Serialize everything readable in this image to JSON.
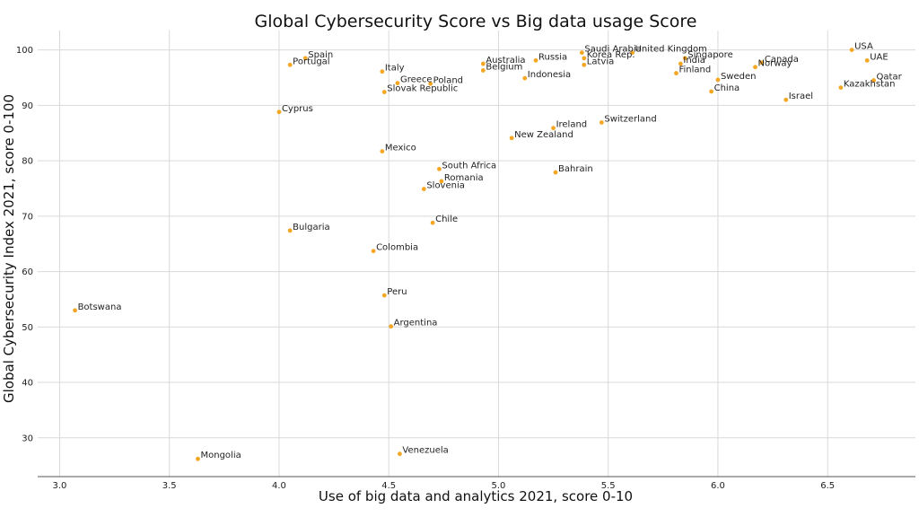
{
  "chart_data": {
    "type": "scatter",
    "title": "Global Cybersecurity Score vs  Big data usage Score",
    "xlabel": "Use of big data and analytics 2021, score 0-10",
    "ylabel": "Global Cybersecurity Index 2021, score 0-100",
    "xlim": [
      2.9,
      6.9
    ],
    "ylim": [
      23,
      103.5
    ],
    "xticks": [
      3.0,
      3.5,
      4.0,
      4.5,
      5.0,
      5.5,
      6.0,
      6.5
    ],
    "yticks": [
      30,
      40,
      50,
      60,
      70,
      80,
      90,
      100
    ],
    "grid": true,
    "marker_color": "#f5a623",
    "points": [
      {
        "label": "USA",
        "x": 6.61,
        "y": 100.0
      },
      {
        "label": "UAE",
        "x": 6.68,
        "y": 98.1
      },
      {
        "label": "Qatar",
        "x": 6.71,
        "y": 94.5
      },
      {
        "label": "Kazakhstan",
        "x": 6.56,
        "y": 93.2
      },
      {
        "label": "Israel",
        "x": 6.31,
        "y": 91.0
      },
      {
        "label": "Canada",
        "x": 6.2,
        "y": 97.7
      },
      {
        "label": "Norway",
        "x": 6.17,
        "y": 96.9
      },
      {
        "label": "Sweden",
        "x": 6.0,
        "y": 94.6
      },
      {
        "label": "China",
        "x": 5.97,
        "y": 92.5
      },
      {
        "label": "Singapore",
        "x": 5.85,
        "y": 98.5
      },
      {
        "label": "India",
        "x": 5.83,
        "y": 97.5
      },
      {
        "label": "Finland",
        "x": 5.81,
        "y": 95.8
      },
      {
        "label": "United Kingdom",
        "x": 5.61,
        "y": 99.5
      },
      {
        "label": "Saudi Arabia",
        "x": 5.38,
        "y": 99.5
      },
      {
        "label": "Korea Rep.",
        "x": 5.39,
        "y": 98.5
      },
      {
        "label": "Latvia",
        "x": 5.39,
        "y": 97.3
      },
      {
        "label": "Switzerland",
        "x": 5.47,
        "y": 86.9
      },
      {
        "label": "Russia",
        "x": 5.17,
        "y": 98.1
      },
      {
        "label": "Indonesia",
        "x": 5.12,
        "y": 94.9
      },
      {
        "label": "Ireland",
        "x": 5.25,
        "y": 85.9
      },
      {
        "label": "Bahrain",
        "x": 5.26,
        "y": 77.9
      },
      {
        "label": "New Zealand",
        "x": 5.06,
        "y": 84.1
      },
      {
        "label": "Australia",
        "x": 4.93,
        "y": 97.5
      },
      {
        "label": "Belgium",
        "x": 4.93,
        "y": 96.3
      },
      {
        "label": "Poland",
        "x": 4.69,
        "y": 93.9
      },
      {
        "label": "Greece",
        "x": 4.54,
        "y": 94.0
      },
      {
        "label": "Slovak Republic",
        "x": 4.48,
        "y": 92.4
      },
      {
        "label": "Italy",
        "x": 4.47,
        "y": 96.1
      },
      {
        "label": "Spain",
        "x": 4.12,
        "y": 98.5
      },
      {
        "label": "Portugal",
        "x": 4.05,
        "y": 97.3
      },
      {
        "label": "Cyprus",
        "x": 4.0,
        "y": 88.8
      },
      {
        "label": "Mexico",
        "x": 4.47,
        "y": 81.7
      },
      {
        "label": "South Africa",
        "x": 4.73,
        "y": 78.5
      },
      {
        "label": "Romania",
        "x": 4.74,
        "y": 76.3
      },
      {
        "label": "Slovenia",
        "x": 4.66,
        "y": 74.9
      },
      {
        "label": "Chile",
        "x": 4.7,
        "y": 68.8
      },
      {
        "label": "Bulgaria",
        "x": 4.05,
        "y": 67.4
      },
      {
        "label": "Colombia",
        "x": 4.43,
        "y": 63.7
      },
      {
        "label": "Peru",
        "x": 4.48,
        "y": 55.7
      },
      {
        "label": "Argentina",
        "x": 4.51,
        "y": 50.1
      },
      {
        "label": "Botswana",
        "x": 3.07,
        "y": 53.0
      },
      {
        "label": "Mongolia",
        "x": 3.63,
        "y": 26.2
      },
      {
        "label": "Venezuela",
        "x": 4.55,
        "y": 27.1
      }
    ]
  }
}
